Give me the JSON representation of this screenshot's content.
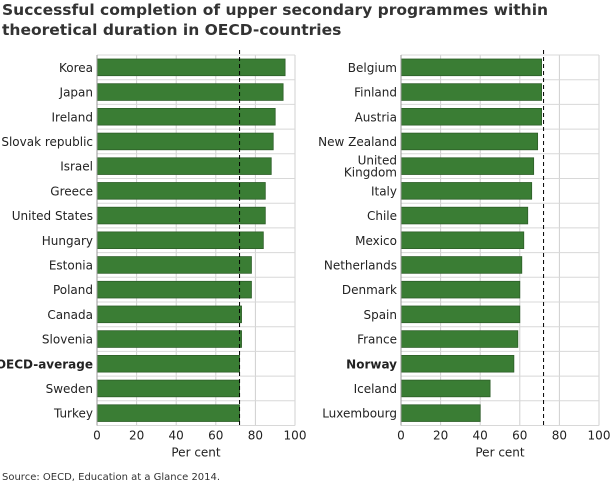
{
  "chart_data": [
    {
      "type": "bar",
      "orientation": "horizontal",
      "title": "Successful completion of upper secondary programmes within theoretical duration in OECD-countries",
      "xlabel": "Per cent",
      "xlim": [
        0,
        100
      ],
      "xticks": [
        "0",
        "20",
        "40",
        "60",
        "80",
        "100"
      ],
      "grid": true,
      "reference_line": 72,
      "categories": [
        "Korea",
        "Japan",
        "Ireland",
        "Slovak republic",
        "Israel",
        "Greece",
        "United States",
        "Hungary",
        "Estonia",
        "Poland",
        "Canada",
        "Slovenia",
        "OECD-average",
        "Sweden",
        "Turkey"
      ],
      "bold_categories": [
        "OECD-average"
      ],
      "values": [
        95,
        94,
        90,
        89,
        88,
        85,
        85,
        84,
        78,
        78,
        73,
        73,
        72,
        72,
        72
      ],
      "bar_color": "#3a7d34"
    },
    {
      "type": "bar",
      "orientation": "horizontal",
      "xlabel": "Per cent",
      "xlim": [
        0,
        100
      ],
      "xticks": [
        "0",
        "20",
        "40",
        "60",
        "80",
        "100"
      ],
      "grid": true,
      "reference_line": 72,
      "categories": [
        "Belgium",
        "Finland",
        "Austria",
        "New Zealand",
        "United Kingdom",
        "Italy",
        "Chile",
        "Mexico",
        "Netherlands",
        "Denmark",
        "Spain",
        "France",
        "Norway",
        "Iceland",
        "Luxembourg"
      ],
      "bold_categories": [
        "Norway"
      ],
      "values": [
        71,
        71,
        71,
        69,
        67,
        66,
        64,
        62,
        61,
        60,
        60,
        59,
        57,
        45,
        40
      ],
      "bar_color": "#3a7d34"
    }
  ],
  "source": "Source: OECD, Education at a Glance 2014."
}
